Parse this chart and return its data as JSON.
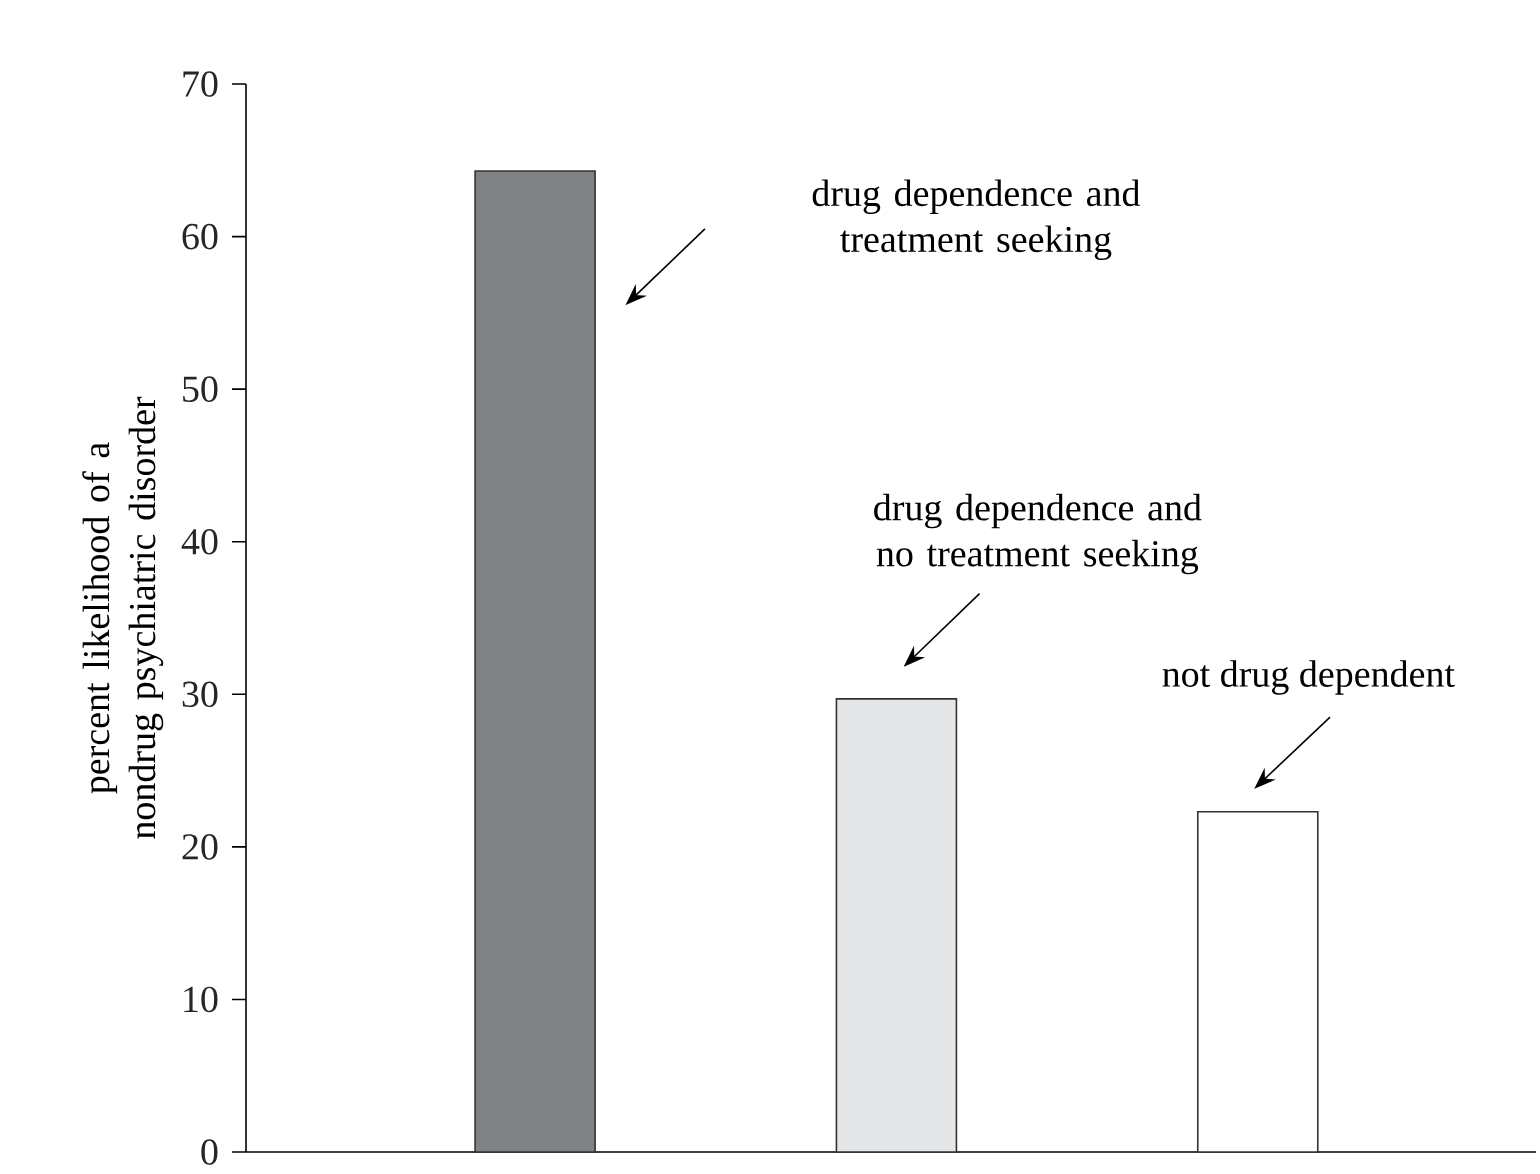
{
  "chart_data": {
    "type": "bar",
    "ylabel": "percent likelihood of a nondrug psychiatric disorder",
    "categories": [
      null,
      null,
      null
    ],
    "values": [
      64.3,
      29.7,
      22.3
    ],
    "colors": [
      "#808184",
      "#e5e6e8",
      "#ffffff"
    ],
    "ylim": [
      0,
      70
    ],
    "yticks": [
      0,
      10,
      20,
      30,
      40,
      50,
      60,
      70
    ],
    "annotations": [
      "drug dependence and treatment seeking",
      "drug dependence and no treatment seeking",
      "not drug dependent"
    ]
  }
}
